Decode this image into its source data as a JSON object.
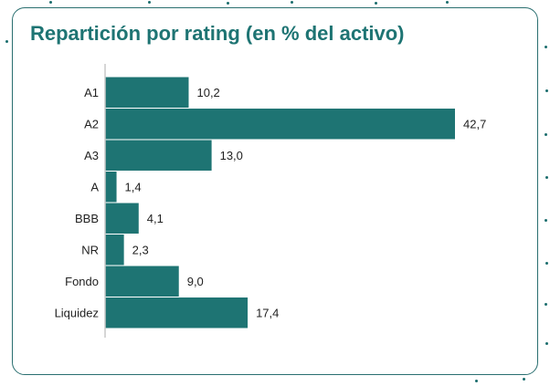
{
  "chart_data": {
    "type": "bar",
    "orientation": "horizontal",
    "title": "Repartición por rating (en % del activo)",
    "categories": [
      "A1",
      "A2",
      "A3",
      "A",
      "BBB",
      "NR",
      "Fondo",
      "Liquidez"
    ],
    "values": [
      10.2,
      42.7,
      13.0,
      1.4,
      4.1,
      2.3,
      9.0,
      17.4
    ],
    "value_labels": [
      "10,2",
      "42,7",
      "13,0",
      "1,4",
      "4,1",
      "2,3",
      "9,0",
      "17,4"
    ],
    "xlim": [
      0,
      45
    ],
    "grid": false,
    "legend": "none",
    "bar_color": "#1e7473"
  },
  "colors": {
    "accent": "#1e7473",
    "border": "#2a6f70"
  }
}
